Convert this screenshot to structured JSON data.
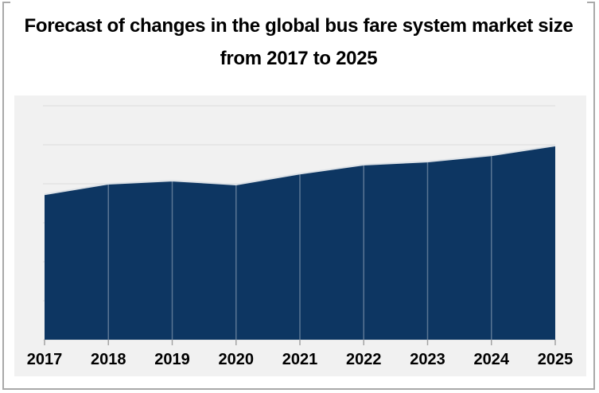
{
  "title": {
    "line1": "Forecast of changes in the global bus fare system market size",
    "line2": "from 2017 to 2025"
  },
  "chart_data": {
    "type": "area",
    "title": "Forecast of changes in the global bus fare system market size from 2017 to 2025",
    "categories": [
      "2017",
      "2018",
      "2019",
      "2020",
      "2021",
      "2022",
      "2023",
      "2024",
      "2025"
    ],
    "values": [
      3.73,
      4.0,
      4.08,
      3.98,
      4.26,
      4.49,
      4.57,
      4.73,
      4.98
    ],
    "xlabel": "",
    "ylabel": "",
    "ylim": [
      0,
      6
    ],
    "y_axis_tick_labels_visible": false,
    "gridlines": "horizontal, unlabeled, 1-unit spacing",
    "legend": "none",
    "values_unit": "relative gridline units (no y-axis labels shown)"
  },
  "colors": {
    "area_fill": "#0d3662",
    "area_top_stroke": "#dde2e7",
    "plot_background": "#f1f1f1",
    "gridline": "#e3e3e3",
    "divider": "rgba(255,255,255,0.32)",
    "tick": "#a3a3a3",
    "frame_border": "#a9a9a9",
    "text": "#000000"
  }
}
